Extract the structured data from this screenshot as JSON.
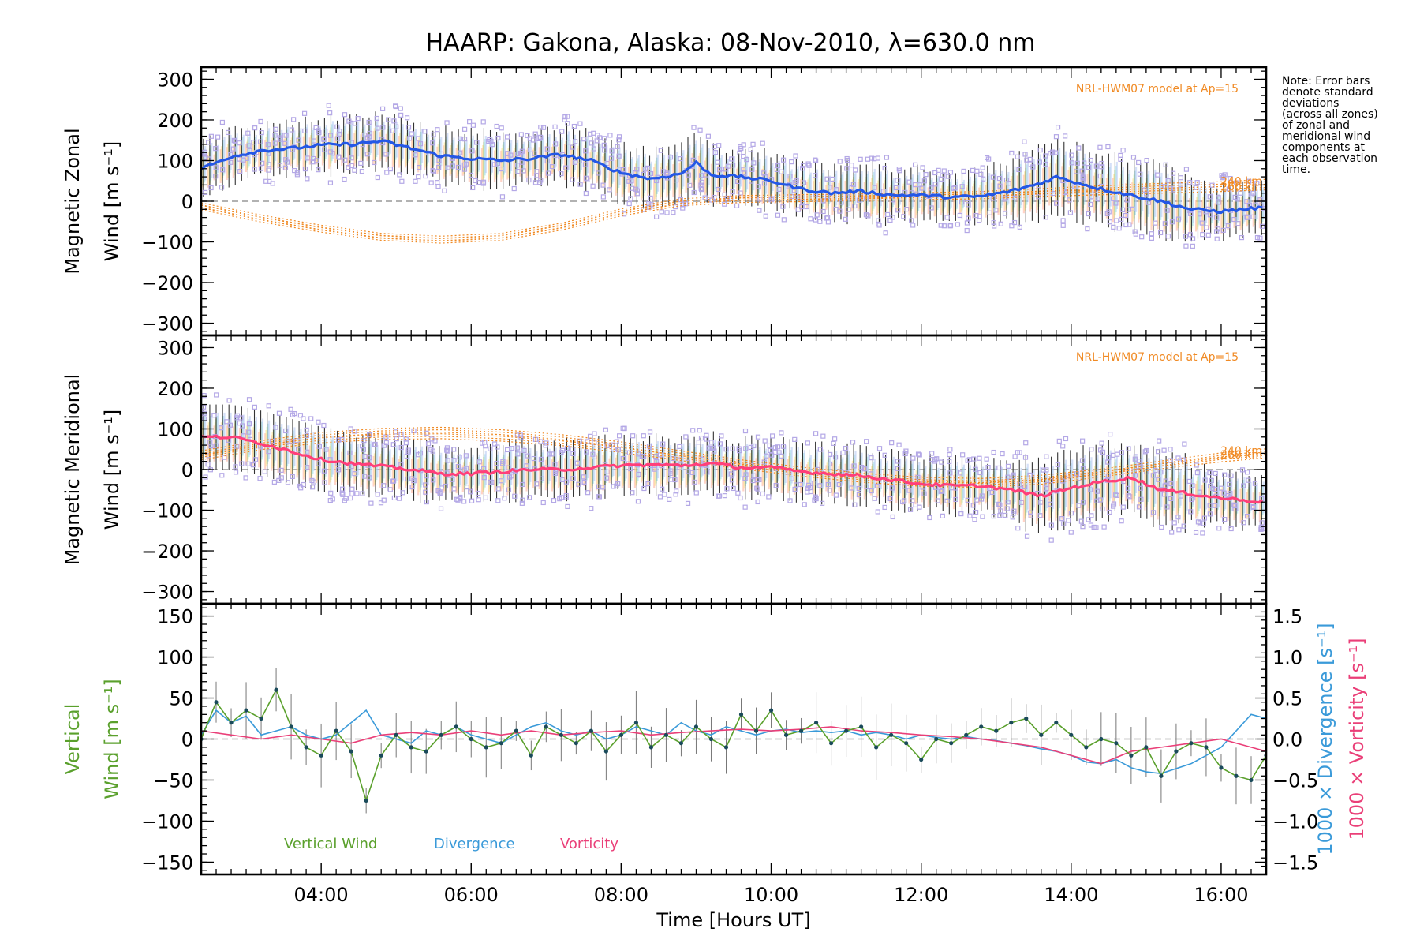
{
  "title": "HAARP: Gakona,  Alaska: 08-Nov-2010, λ=630.0 nm",
  "note_lines": [
    "Note: Error bars",
    "denote standard",
    "deviations",
    "(across all zones)",
    "of zonal and",
    "meridional wind",
    "components at",
    "each observation",
    "time."
  ],
  "colors": {
    "zonal_line": "#2457e6",
    "meridional_line": "#ff3f7a",
    "vertical_line": "#5aa02c",
    "divergence": "#3a9ad9",
    "vorticity": "#ea3f78",
    "model": "#f08a24",
    "scatter": "#b4a8e6",
    "zero_line": "#999999"
  },
  "chart_data": [
    {
      "type": "line",
      "panel": "zonal",
      "ylabel_line1": "Magnetic Zonal",
      "ylabel_line2": "Wind [m s⁻¹]",
      "ylim": [
        -330,
        330
      ],
      "yticks": [
        -300,
        -200,
        -100,
        0,
        100,
        200,
        300
      ],
      "xlim": [
        2.4,
        16.6
      ],
      "model_label": "NRL-HWM07 model at Ap=15",
      "model_heights": [
        "240 km",
        "260 km"
      ],
      "series": [
        {
          "key": "mean",
          "x": [
            2.4,
            2.8,
            3.2,
            3.6,
            4.0,
            4.4,
            4.8,
            5.2,
            5.6,
            6.0,
            6.4,
            6.8,
            7.2,
            7.6,
            8.0,
            8.4,
            8.8,
            9.0,
            9.2,
            9.6,
            10.0,
            10.4,
            10.8,
            11.2,
            11.6,
            12.0,
            12.4,
            12.8,
            13.2,
            13.6,
            13.8,
            14.0,
            14.4,
            14.8,
            15.2,
            15.6,
            16.0,
            16.6
          ],
          "y": [
            80,
            110,
            125,
            130,
            138,
            140,
            148,
            130,
            112,
            105,
            100,
            105,
            115,
            100,
            70,
            55,
            68,
            95,
            65,
            60,
            50,
            30,
            20,
            25,
            15,
            15,
            10,
            12,
            25,
            45,
            60,
            50,
            30,
            15,
            0,
            -20,
            -25,
            -15
          ]
        },
        {
          "key": "model_240km",
          "x": [
            2.4,
            3.2,
            4.0,
            4.8,
            5.6,
            6.4,
            7.2,
            8.0,
            8.8,
            9.6,
            10.4,
            11.2,
            12.0,
            12.8,
            13.6,
            14.4,
            15.2,
            16.0,
            16.6
          ],
          "y": [
            -10,
            -40,
            -65,
            -85,
            -92,
            -85,
            -60,
            -25,
            0,
            8,
            10,
            12,
            15,
            18,
            25,
            32,
            38,
            42,
            48
          ]
        },
        {
          "key": "model_260km",
          "x": [
            2.4,
            3.2,
            4.0,
            4.8,
            5.6,
            6.4,
            7.2,
            8.0,
            8.8,
            9.6,
            10.4,
            11.2,
            12.0,
            12.8,
            13.6,
            14.4,
            15.2,
            16.0,
            16.6
          ],
          "y": [
            -15,
            -45,
            -70,
            -90,
            -97,
            -90,
            -65,
            -30,
            -5,
            3,
            5,
            8,
            10,
            12,
            18,
            22,
            26,
            30,
            34
          ]
        }
      ]
    },
    {
      "type": "line",
      "panel": "meridional",
      "ylabel_line1": "Magnetic Meridional",
      "ylabel_line2": "Wind [m s⁻¹]",
      "ylim": [
        -330,
        330
      ],
      "yticks": [
        -300,
        -200,
        -100,
        0,
        100,
        200,
        300
      ],
      "xlim": [
        2.4,
        16.6
      ],
      "model_label": "NRL-HWM07 model at Ap=15",
      "model_heights": [
        "240 km",
        "260 km"
      ],
      "series": [
        {
          "key": "mean",
          "x": [
            2.4,
            2.8,
            3.2,
            3.6,
            4.0,
            4.4,
            4.8,
            5.2,
            5.6,
            6.0,
            6.4,
            6.8,
            7.2,
            7.6,
            8.0,
            8.4,
            8.8,
            9.2,
            9.6,
            10.0,
            10.4,
            10.8,
            11.2,
            11.6,
            12.0,
            12.4,
            12.8,
            13.2,
            13.6,
            14.0,
            14.4,
            14.8,
            15.2,
            15.6,
            16.0,
            16.6
          ],
          "y": [
            80,
            80,
            65,
            45,
            25,
            15,
            8,
            0,
            -10,
            -10,
            -5,
            0,
            0,
            5,
            10,
            12,
            10,
            15,
            5,
            5,
            -5,
            -10,
            -15,
            -25,
            -35,
            -40,
            -40,
            -50,
            -65,
            -45,
            -30,
            -20,
            -50,
            -60,
            -70,
            -80
          ]
        },
        {
          "key": "model_240km",
          "x": [
            2.4,
            3.2,
            4.0,
            4.8,
            5.6,
            6.4,
            7.2,
            8.0,
            8.8,
            9.6,
            10.4,
            11.2,
            12.0,
            12.8,
            13.6,
            14.4,
            15.2,
            16.0,
            16.6
          ],
          "y": [
            40,
            65,
            85,
            95,
            98,
            92,
            80,
            62,
            40,
            18,
            0,
            -15,
            -25,
            -28,
            -20,
            -5,
            15,
            35,
            45
          ]
        },
        {
          "key": "model_260km",
          "x": [
            2.4,
            3.2,
            4.0,
            4.8,
            5.6,
            6.4,
            7.2,
            8.0,
            8.8,
            9.6,
            10.4,
            11.2,
            12.0,
            12.8,
            13.6,
            14.4,
            15.2,
            16.0,
            16.6
          ],
          "y": [
            30,
            55,
            72,
            80,
            82,
            76,
            65,
            48,
            28,
            8,
            -10,
            -25,
            -35,
            -38,
            -30,
            -12,
            8,
            25,
            35
          ]
        }
      ]
    },
    {
      "type": "line",
      "panel": "vertical",
      "ylabel_line1": "Vertical",
      "ylabel_line2": "Wind [m s⁻¹]",
      "right_ylabel_1": "1000 × Divergence [s⁻¹]",
      "right_ylabel_2": "1000 × Vorticity [s⁻¹]",
      "ylim": [
        -165,
        165
      ],
      "yticks": [
        -150,
        -100,
        -50,
        0,
        50,
        100,
        150
      ],
      "y2lim": [
        -1.65,
        1.65
      ],
      "y2ticks": [
        -1.5,
        -1.0,
        -0.5,
        0.0,
        0.5,
        1.0,
        1.5
      ],
      "y2ticklabels": [
        "−1.5",
        "−1.0",
        "−0.5",
        "0.0",
        "0.5",
        "1.0",
        "1.5"
      ],
      "xlim": [
        2.4,
        16.6
      ],
      "xticks": [
        4,
        6,
        8,
        10,
        12,
        14,
        16
      ],
      "xticklabels": [
        "04:00",
        "06:00",
        "08:00",
        "10:00",
        "12:00",
        "14:00",
        "16:00"
      ],
      "xlabel": "Time [Hours UT]",
      "legend": [
        "Vertical Wind",
        "Divergence",
        "Vorticity"
      ],
      "series": [
        {
          "key": "vertical_wind",
          "x": [
            2.4,
            2.6,
            2.8,
            3.0,
            3.2,
            3.4,
            3.6,
            3.8,
            4.0,
            4.2,
            4.4,
            4.6,
            4.8,
            5.0,
            5.2,
            5.4,
            5.6,
            5.8,
            6.0,
            6.2,
            6.4,
            6.6,
            6.8,
            7.0,
            7.2,
            7.4,
            7.6,
            7.8,
            8.0,
            8.2,
            8.4,
            8.6,
            8.8,
            9.0,
            9.2,
            9.4,
            9.6,
            9.8,
            10.0,
            10.2,
            10.4,
            10.6,
            10.8,
            11.0,
            11.2,
            11.4,
            11.6,
            11.8,
            12.0,
            12.2,
            12.4,
            12.6,
            12.8,
            13.0,
            13.2,
            13.4,
            13.6,
            13.8,
            14.0,
            14.2,
            14.4,
            14.6,
            14.8,
            15.0,
            15.2,
            15.4,
            15.6,
            15.8,
            16.0,
            16.2,
            16.4,
            16.6
          ],
          "y": [
            0,
            45,
            20,
            35,
            25,
            60,
            15,
            -10,
            -20,
            10,
            -15,
            -75,
            -20,
            5,
            -10,
            -15,
            5,
            15,
            0,
            -10,
            -5,
            10,
            -20,
            15,
            5,
            -5,
            10,
            -15,
            5,
            20,
            -10,
            5,
            -5,
            15,
            0,
            -10,
            30,
            10,
            35,
            5,
            10,
            20,
            -5,
            10,
            15,
            -10,
            5,
            -5,
            -25,
            0,
            -5,
            5,
            15,
            10,
            20,
            25,
            5,
            20,
            5,
            -10,
            0,
            -5,
            -20,
            -10,
            -45,
            -15,
            -5,
            -10,
            -35,
            -45,
            -50,
            -20
          ]
        },
        {
          "key": "divergence",
          "x": [
            2.4,
            2.6,
            2.8,
            3.0,
            3.2,
            3.4,
            3.6,
            3.8,
            4.0,
            4.2,
            4.4,
            4.6,
            4.8,
            5.0,
            5.2,
            5.4,
            5.6,
            5.8,
            6.0,
            6.2,
            6.4,
            6.6,
            6.8,
            7.0,
            7.2,
            7.4,
            7.6,
            7.8,
            8.0,
            8.2,
            8.4,
            8.6,
            8.8,
            9.0,
            9.2,
            9.4,
            9.6,
            9.8,
            10.0,
            10.2,
            10.4,
            10.6,
            10.8,
            11.0,
            11.2,
            11.4,
            11.6,
            11.8,
            12.0,
            12.2,
            12.4,
            12.6,
            12.8,
            13.0,
            13.2,
            13.4,
            13.6,
            13.8,
            14.0,
            14.2,
            14.4,
            14.6,
            14.8,
            15.0,
            15.2,
            15.6,
            16.0,
            16.2,
            16.4,
            16.6
          ],
          "y": [
            0.05,
            0.35,
            0.2,
            0.28,
            0.05,
            0.1,
            0.15,
            0.05,
            0.0,
            0.05,
            0.2,
            0.35,
            0.05,
            0.0,
            -0.05,
            0.1,
            0.05,
            0.15,
            0.05,
            0.0,
            -0.05,
            0.05,
            0.15,
            0.2,
            0.1,
            0.05,
            0.1,
            0.0,
            0.05,
            0.15,
            0.1,
            0.05,
            0.2,
            0.1,
            0.05,
            0.15,
            0.1,
            0.05,
            0.1,
            0.12,
            0.08,
            0.1,
            0.08,
            0.1,
            0.05,
            0.08,
            0.05,
            0.0,
            0.05,
            0.02,
            0.0,
            0.03,
            0.0,
            -0.02,
            -0.05,
            -0.08,
            -0.12,
            -0.15,
            -0.2,
            -0.28,
            -0.3,
            -0.25,
            -0.35,
            -0.4,
            -0.42,
            -0.3,
            -0.1,
            0.1,
            0.3,
            0.25
          ]
        },
        {
          "key": "vorticity",
          "x": [
            2.4,
            2.8,
            3.2,
            3.6,
            4.0,
            4.4,
            4.8,
            5.2,
            5.6,
            6.0,
            6.4,
            6.8,
            7.2,
            7.6,
            8.0,
            8.4,
            8.8,
            9.2,
            9.6,
            10.0,
            10.4,
            10.8,
            11.2,
            11.6,
            12.0,
            12.4,
            12.8,
            13.2,
            13.6,
            14.0,
            14.4,
            14.8,
            15.2,
            15.6,
            16.0,
            16.4,
            16.6
          ],
          "y": [
            0.1,
            0.05,
            0.0,
            0.05,
            0.0,
            -0.05,
            0.05,
            0.08,
            0.05,
            0.1,
            0.05,
            0.1,
            0.05,
            0.08,
            0.1,
            0.05,
            0.08,
            0.1,
            0.12,
            0.1,
            0.12,
            0.15,
            0.1,
            0.08,
            0.05,
            0.03,
            0.0,
            -0.05,
            -0.1,
            -0.2,
            -0.3,
            -0.15,
            -0.1,
            -0.05,
            0.0,
            -0.1,
            -0.15
          ]
        }
      ]
    }
  ]
}
